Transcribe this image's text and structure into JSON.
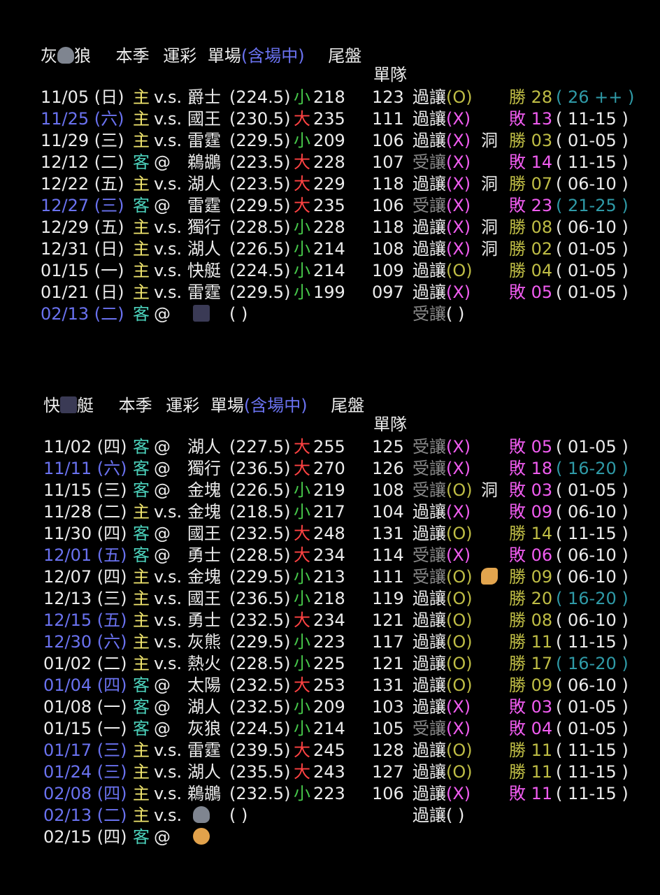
{
  "icons": {
    "wolf": "wolf-icon",
    "ship": "ship-icon",
    "ok_hand": "ok-hand-icon",
    "flexed_biceps": "flexed-biceps-icon"
  },
  "colors": {
    "background": "#000000",
    "date_highlight": "#6a72f0",
    "home": "#f1e66e",
    "away": "#4cd2bc",
    "under": "#46c84a",
    "over": "#ff4242",
    "cover_take": "#8a8a8a",
    "win": "#bfbd45",
    "loss": "#f05cf0",
    "range_highlight": "#2f9aa7"
  },
  "sections": [
    {
      "title_pre": "灰",
      "title_post": "狼",
      "header": {
        "season": "本季",
        "lottery": "運彩",
        "single": "單場",
        "incl_live": "(含場中)",
        "closing": "尾盤"
      },
      "single_team_label": "單隊",
      "rows": [
        {
          "date": "11/05 (日)",
          "hl": false,
          "ha": "主",
          "vs": "v.s.",
          "opp": "爵士",
          "line": "(224.5)",
          "ou": "小",
          "res": "218",
          "pts": "123",
          "pass": "過讓",
          "mark": "(O)",
          "push": "",
          "wl": "勝 28",
          "rng": "( 26 ++ )",
          "rhl": true
        },
        {
          "date": "11/25 (六)",
          "hl": true,
          "ha": "主",
          "vs": "v.s.",
          "opp": "國王",
          "line": "(230.5)",
          "ou": "大",
          "res": "235",
          "pts": "111",
          "pass": "過讓",
          "mark": "(X)",
          "push": "",
          "wl": "敗 13",
          "rng": "( 11-15 )",
          "rhl": false
        },
        {
          "date": "11/29 (三)",
          "hl": false,
          "ha": "主",
          "vs": "v.s.",
          "opp": "雷霆",
          "line": "(229.5)",
          "ou": "小",
          "res": "209",
          "pts": "106",
          "pass": "過讓",
          "mark": "(X)",
          "push": "洞",
          "wl": "勝 03",
          "rng": "( 01-05 )",
          "rhl": false
        },
        {
          "date": "12/12 (二)",
          "hl": false,
          "ha": "客",
          "vs": "@",
          "opp": "鵜鶘",
          "line": "(223.5)",
          "ou": "大",
          "res": "228",
          "pts": "107",
          "pass": "受讓",
          "mark": "(X)",
          "push": "",
          "wl": "敗 14",
          "rng": "( 11-15 )",
          "rhl": false
        },
        {
          "date": "12/22 (五)",
          "hl": false,
          "ha": "主",
          "vs": "v.s.",
          "opp": "湖人",
          "line": "(223.5)",
          "ou": "大",
          "res": "229",
          "pts": "118",
          "pass": "過讓",
          "mark": "(X)",
          "push": "洞",
          "wl": "勝 07",
          "rng": "( 06-10 )",
          "rhl": false
        },
        {
          "date": "12/27 (三)",
          "hl": true,
          "ha": "客",
          "vs": "@",
          "opp": "雷霆",
          "line": "(229.5)",
          "ou": "大",
          "res": "235",
          "pts": "106",
          "pass": "受讓",
          "mark": "(X)",
          "push": "",
          "wl": "敗 23",
          "rng": "( 21-25 )",
          "rhl": true
        },
        {
          "date": "12/29 (五)",
          "hl": false,
          "ha": "主",
          "vs": "v.s.",
          "opp": "獨行",
          "line": "(228.5)",
          "ou": "小",
          "res": "228",
          "pts": "118",
          "pass": "過讓",
          "mark": "(X)",
          "push": "洞",
          "wl": "勝 08",
          "rng": "( 06-10 )",
          "rhl": false
        },
        {
          "date": "12/31 (日)",
          "hl": false,
          "ha": "主",
          "vs": "v.s.",
          "opp": "湖人",
          "line": "(226.5)",
          "ou": "小",
          "res": "214",
          "pts": "108",
          "pass": "過讓",
          "mark": "(X)",
          "push": "洞",
          "wl": "勝 02",
          "rng": "( 01-05 )",
          "rhl": false
        },
        {
          "date": "01/15 (一)",
          "hl": false,
          "ha": "主",
          "vs": "v.s.",
          "opp": "快艇",
          "line": "(224.5)",
          "ou": "小",
          "res": "214",
          "pts": "109",
          "pass": "過讓",
          "mark": "(O)",
          "push": "",
          "wl": "勝 04",
          "rng": "( 01-05 )",
          "rhl": false
        },
        {
          "date": "01/21 (日)",
          "hl": false,
          "ha": "主",
          "vs": "v.s.",
          "opp": "雷霆",
          "line": "(229.5)",
          "ou": "小",
          "res": "199",
          "pts": "097",
          "pass": "過讓",
          "mark": "(X)",
          "push": "",
          "wl": "敗 05",
          "rng": "( 01-05 )",
          "rhl": false
        },
        {
          "date": "02/13 (二)",
          "hl": true,
          "ha": "客",
          "vs": "@",
          "opp": "",
          "oppIcon": "ship",
          "line": "(        )",
          "ou": "",
          "res": "",
          "pts": "",
          "pass": "受讓",
          "mark": "(  )",
          "push": "",
          "wl": "",
          "rng": "",
          "rhl": false
        }
      ]
    },
    {
      "title_pre": "快",
      "title_post": "艇",
      "header": {
        "season": "本季",
        "lottery": "運彩",
        "single": "單場",
        "incl_live": "(含場中)",
        "closing": "尾盤"
      },
      "single_team_label": "單隊",
      "rows": [
        {
          "date": "11/02 (四)",
          "hl": false,
          "ha": "客",
          "vs": "@",
          "opp": "湖人",
          "line": "(227.5)",
          "ou": "大",
          "res": "255",
          "pts": "125",
          "pass": "受讓",
          "mark": "(X)",
          "push": "",
          "wl": "敗 05",
          "rng": "( 01-05 )",
          "rhl": false
        },
        {
          "date": "11/11 (六)",
          "hl": true,
          "ha": "客",
          "vs": "@",
          "opp": "獨行",
          "line": "(236.5)",
          "ou": "大",
          "res": "270",
          "pts": "126",
          "pass": "受讓",
          "mark": "(X)",
          "push": "",
          "wl": "敗 18",
          "rng": "( 16-20 )",
          "rhl": true
        },
        {
          "date": "11/15 (三)",
          "hl": false,
          "ha": "客",
          "vs": "@",
          "opp": "金塊",
          "line": "(226.5)",
          "ou": "小",
          "res": "219",
          "pts": "108",
          "pass": "受讓",
          "mark": "(O)",
          "push": "洞",
          "wl": "敗 03",
          "rng": "( 01-05 )",
          "rhl": false
        },
        {
          "date": "11/28 (二)",
          "hl": false,
          "ha": "主",
          "vs": "v.s.",
          "opp": "金塊",
          "line": "(218.5)",
          "ou": "小",
          "res": "217",
          "pts": "104",
          "pass": "過讓",
          "mark": "(X)",
          "push": "",
          "wl": "敗 09",
          "rng": "( 06-10 )",
          "rhl": false
        },
        {
          "date": "11/30 (四)",
          "hl": false,
          "ha": "客",
          "vs": "@",
          "opp": "國王",
          "line": "(232.5)",
          "ou": "大",
          "res": "248",
          "pts": "131",
          "pass": "過讓",
          "mark": "(O)",
          "push": "",
          "wl": "勝 14",
          "rng": "( 11-15 )",
          "rhl": false
        },
        {
          "date": "12/01 (五)",
          "hl": true,
          "ha": "客",
          "vs": "@",
          "opp": "勇士",
          "line": "(228.5)",
          "ou": "大",
          "res": "234",
          "pts": "114",
          "pass": "受讓",
          "mark": "(X)",
          "push": "",
          "wl": "敗 06",
          "rng": "( 06-10 )",
          "rhl": false
        },
        {
          "date": "12/07 (四)",
          "hl": false,
          "ha": "主",
          "vs": "v.s.",
          "opp": "金塊",
          "line": "(229.5)",
          "ou": "小",
          "res": "213",
          "pts": "111",
          "pass": "受讓",
          "mark": "(O)",
          "push": "",
          "pushIcon": "arm",
          "wl": "勝 09",
          "rng": "( 06-10 )",
          "rhl": false
        },
        {
          "date": "12/13 (三)",
          "hl": false,
          "ha": "主",
          "vs": "v.s.",
          "opp": "國王",
          "line": "(236.5)",
          "ou": "小",
          "res": "218",
          "pts": "119",
          "pass": "過讓",
          "mark": "(O)",
          "push": "",
          "wl": "勝 20",
          "rng": "( 16-20 )",
          "rhl": true
        },
        {
          "date": "12/15 (五)",
          "hl": true,
          "ha": "主",
          "vs": "v.s.",
          "opp": "勇士",
          "line": "(232.5)",
          "ou": "大",
          "res": "234",
          "pts": "121",
          "pass": "過讓",
          "mark": "(O)",
          "push": "",
          "wl": "勝 08",
          "rng": "( 06-10 )",
          "rhl": false
        },
        {
          "date": "12/30 (六)",
          "hl": true,
          "ha": "主",
          "vs": "v.s.",
          "opp": "灰熊",
          "line": "(229.5)",
          "ou": "小",
          "res": "223",
          "pts": "117",
          "pass": "過讓",
          "mark": "(O)",
          "push": "",
          "wl": "勝 11",
          "rng": "( 11-15 )",
          "rhl": false
        },
        {
          "date": "01/02 (二)",
          "hl": false,
          "ha": "主",
          "vs": "v.s.",
          "opp": "熱火",
          "line": "(228.5)",
          "ou": "小",
          "res": "225",
          "pts": "121",
          "pass": "過讓",
          "mark": "(O)",
          "push": "",
          "wl": "勝 17",
          "rng": "( 16-20 )",
          "rhl": true
        },
        {
          "date": "01/04 (四)",
          "hl": true,
          "ha": "客",
          "vs": "@",
          "opp": "太陽",
          "line": "(232.5)",
          "ou": "大",
          "res": "253",
          "pts": "131",
          "pass": "過讓",
          "mark": "(O)",
          "push": "",
          "wl": "勝 09",
          "rng": "( 06-10 )",
          "rhl": false
        },
        {
          "date": "01/08 (一)",
          "hl": false,
          "ha": "客",
          "vs": "@",
          "opp": "湖人",
          "line": "(232.5)",
          "ou": "小",
          "res": "209",
          "pts": "103",
          "pass": "過讓",
          "mark": "(X)",
          "push": "",
          "wl": "敗 03",
          "rng": "( 01-05 )",
          "rhl": false
        },
        {
          "date": "01/15 (一)",
          "hl": false,
          "ha": "客",
          "vs": "@",
          "opp": "灰狼",
          "line": "(224.5)",
          "ou": "小",
          "res": "214",
          "pts": "105",
          "pass": "受讓",
          "mark": "(X)",
          "push": "",
          "wl": "敗 04",
          "rng": "( 01-05 )",
          "rhl": false
        },
        {
          "date": "01/17 (三)",
          "hl": true,
          "ha": "主",
          "vs": "v.s.",
          "opp": "雷霆",
          "line": "(239.5)",
          "ou": "大",
          "res": "245",
          "pts": "128",
          "pass": "過讓",
          "mark": "(O)",
          "push": "",
          "wl": "勝 11",
          "rng": "( 11-15 )",
          "rhl": false
        },
        {
          "date": "01/24 (三)",
          "hl": true,
          "ha": "主",
          "vs": "v.s.",
          "opp": "湖人",
          "line": "(235.5)",
          "ou": "大",
          "res": "243",
          "pts": "127",
          "pass": "過讓",
          "mark": "(O)",
          "push": "",
          "wl": "勝 11",
          "rng": "( 11-15 )",
          "rhl": false
        },
        {
          "date": "02/08 (四)",
          "hl": true,
          "ha": "主",
          "vs": "v.s.",
          "opp": "鵜鶘",
          "line": "(232.5)",
          "ou": "小",
          "res": "223",
          "pts": "106",
          "pass": "過讓",
          "mark": "(X)",
          "push": "",
          "wl": "敗 11",
          "rng": "( 11-15 )",
          "rhl": false
        },
        {
          "date": "02/13 (二)",
          "hl": true,
          "ha": "主",
          "vs": "v.s.",
          "opp": "",
          "oppIcon": "wolf",
          "line": "(        )",
          "ou": "",
          "res": "",
          "pts": "",
          "pass": "過讓",
          "mark": "(  )",
          "push": "",
          "wl": "",
          "rng": "",
          "rhl": false
        },
        {
          "date": "02/15 (四)",
          "hl": false,
          "ha": "客",
          "vs": "@",
          "opp": "",
          "oppIcon": "ok",
          "line": "",
          "ou": "",
          "res": "",
          "pts": "",
          "pass": "",
          "mark": "",
          "push": "",
          "wl": "",
          "rng": "",
          "rhl": false
        }
      ]
    }
  ]
}
